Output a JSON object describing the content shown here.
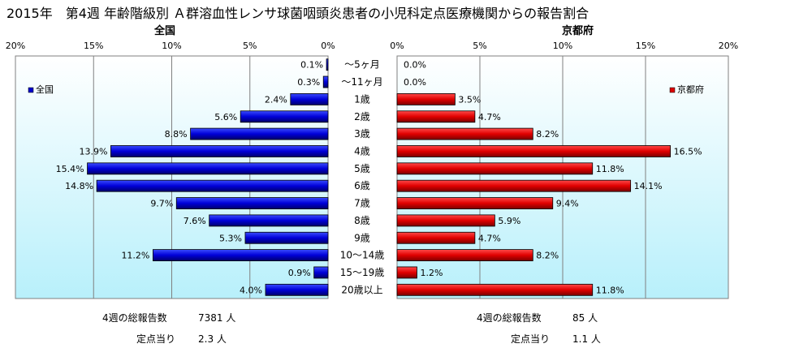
{
  "title": "2015年　第4週 年齢階級別 Ａ群溶血性レンサ球菌咽頭炎患者の小児科定点医療機関からの報告割合",
  "chart_data": [
    {
      "type": "bar",
      "orientation": "horizontal",
      "title": "全国",
      "legend": "全国",
      "legend_position": "top-left",
      "x_direction": "reversed",
      "xlim": [
        0,
        20
      ],
      "xticks": [
        "20%",
        "15%",
        "10%",
        "5%",
        "0%"
      ],
      "color": "#0000cc",
      "categories": [
        "～5ヶ月",
        "～11ヶ月",
        "1歳",
        "2歳",
        "3歳",
        "4歳",
        "5歳",
        "6歳",
        "7歳",
        "8歳",
        "9歳",
        "10～14歳",
        "15～19歳",
        "20歳以上"
      ],
      "values": [
        0.1,
        0.3,
        2.4,
        5.6,
        8.8,
        13.9,
        15.4,
        14.8,
        9.7,
        7.6,
        5.3,
        11.2,
        0.9,
        4.0
      ],
      "data_labels": [
        "0.1%",
        "0.3%",
        "2.4%",
        "5.6%",
        "8.8%",
        "13.9%",
        "15.4%",
        "14.8%",
        "9.7%",
        "7.6%",
        "5.3%",
        "11.2%",
        "0.9%",
        "4.0%"
      ]
    },
    {
      "type": "bar",
      "orientation": "horizontal",
      "title": "京都府",
      "legend": "京都府",
      "legend_position": "top-right",
      "xlim": [
        0,
        20
      ],
      "xticks": [
        "0%",
        "5%",
        "10%",
        "15%",
        "20%"
      ],
      "color": "#dd0000",
      "categories": [
        "～5ヶ月",
        "～11ヶ月",
        "1歳",
        "2歳",
        "3歳",
        "4歳",
        "5歳",
        "6歳",
        "7歳",
        "8歳",
        "9歳",
        "10～14歳",
        "15～19歳",
        "20歳以上"
      ],
      "values": [
        0.0,
        0.0,
        3.5,
        4.7,
        8.2,
        16.5,
        11.8,
        14.1,
        9.4,
        5.9,
        4.7,
        8.2,
        1.2,
        11.8
      ],
      "data_labels": [
        "0.0%",
        "0.0%",
        "3.5%",
        "4.7%",
        "8.2%",
        "16.5%",
        "11.8%",
        "14.1%",
        "9.4%",
        "5.9%",
        "4.7%",
        "8.2%",
        "1.2%",
        "11.8%"
      ]
    }
  ],
  "footer": {
    "national": {
      "reports_label": "4週の総報告数",
      "reports_value": "7381 人",
      "per_site_label": "定点当り",
      "per_site_value": "2.3 人"
    },
    "kyoto": {
      "reports_label": "4週の総報告数",
      "reports_value": "85 人",
      "per_site_label": "定点当り",
      "per_site_value": "1.1 人"
    }
  }
}
